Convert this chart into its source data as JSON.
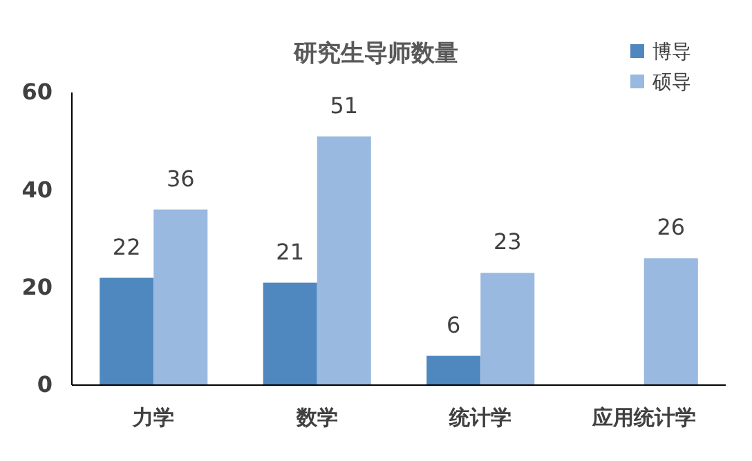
{
  "chart_data": {
    "type": "bar",
    "title": "研究生导师数量",
    "categories": [
      "力学",
      "数学",
      "统计学",
      "应用统计学"
    ],
    "series": [
      {
        "name": "博导",
        "color": "#4f88bf",
        "values": [
          22,
          21,
          6,
          null
        ]
      },
      {
        "name": "硕导",
        "color": "#99b9e0",
        "values": [
          36,
          51,
          23,
          26
        ]
      }
    ],
    "ylim": [
      0,
      60
    ],
    "yticks": [
      0,
      20,
      40,
      60
    ],
    "grid": false,
    "legend": "top right",
    "data_labels": true
  }
}
